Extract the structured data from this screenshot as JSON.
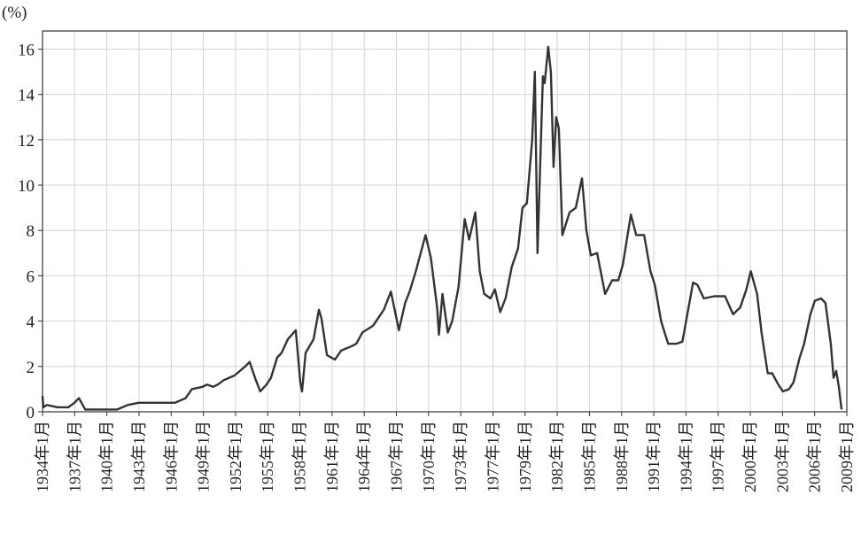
{
  "chart_data": {
    "type": "line",
    "unit_label": "(%)",
    "ylim": [
      0,
      16.8
    ],
    "yticks": [
      0,
      2,
      4,
      6,
      8,
      10,
      12,
      14,
      16
    ],
    "x_range": [
      "1934-01",
      "2009-06"
    ],
    "xticks": [
      "1934年1月",
      "1937年1月",
      "1940年1月",
      "1943年1月",
      "1946年1月",
      "1949年1月",
      "1952年1月",
      "1955年1月",
      "1958年1月",
      "1961年1月",
      "1964年1月",
      "1967年1月",
      "1970年1月",
      "1973年1月",
      "1977年1月",
      "1979年1月",
      "1982年1月",
      "1985年1月",
      "1988年1月",
      "1991年1月",
      "1994年1月",
      "1997年1月",
      "2000年1月",
      "2003年1月",
      "2006年1月",
      "2009年1月"
    ],
    "grid": true,
    "line_color": "#333333",
    "series": [
      {
        "points": [
          [
            "1934-01",
            0.7
          ],
          [
            "1934-02",
            0.2
          ],
          [
            "1934-06",
            0.3
          ],
          [
            "1935-06",
            0.2
          ],
          [
            "1936-06",
            0.2
          ],
          [
            "1937-01",
            0.4
          ],
          [
            "1937-06",
            0.6
          ],
          [
            "1938-01",
            0.1
          ],
          [
            "1939-01",
            0.1
          ],
          [
            "1940-01",
            0.1
          ],
          [
            "1941-01",
            0.1
          ],
          [
            "1942-01",
            0.3
          ],
          [
            "1943-01",
            0.4
          ],
          [
            "1944-01",
            0.4
          ],
          [
            "1946-06",
            0.4
          ],
          [
            "1947-06",
            0.6
          ],
          [
            "1948-01",
            1.0
          ],
          [
            "1949-01",
            1.1
          ],
          [
            "1949-06",
            1.2
          ],
          [
            "1950-01",
            1.1
          ],
          [
            "1950-06",
            1.2
          ],
          [
            "1951-01",
            1.4
          ],
          [
            "1952-01",
            1.6
          ],
          [
            "1953-01",
            2.0
          ],
          [
            "1953-06",
            2.2
          ],
          [
            "1954-01",
            1.4
          ],
          [
            "1954-06",
            0.9
          ],
          [
            "1955-01",
            1.2
          ],
          [
            "1955-06",
            1.5
          ],
          [
            "1956-01",
            2.4
          ],
          [
            "1956-06",
            2.6
          ],
          [
            "1957-01",
            3.2
          ],
          [
            "1957-10",
            3.6
          ],
          [
            "1958-03",
            1.3
          ],
          [
            "1958-05",
            0.9
          ],
          [
            "1958-09",
            2.6
          ],
          [
            "1959-06",
            3.2
          ],
          [
            "1959-12",
            4.5
          ],
          [
            "1960-03",
            4.1
          ],
          [
            "1960-09",
            2.5
          ],
          [
            "1961-06",
            2.3
          ],
          [
            "1962-01",
            2.7
          ],
          [
            "1963-01",
            2.9
          ],
          [
            "1963-06",
            3.0
          ],
          [
            "1964-01",
            3.5
          ],
          [
            "1965-01",
            3.8
          ],
          [
            "1966-01",
            4.5
          ],
          [
            "1966-09",
            5.3
          ],
          [
            "1967-06",
            3.6
          ],
          [
            "1968-01",
            4.8
          ],
          [
            "1968-06",
            5.3
          ],
          [
            "1969-01",
            6.2
          ],
          [
            "1969-12",
            7.8
          ],
          [
            "1970-06",
            6.8
          ],
          [
            "1971-01",
            4.6
          ],
          [
            "1971-03",
            3.4
          ],
          [
            "1971-07",
            5.2
          ],
          [
            "1972-01",
            3.5
          ],
          [
            "1972-06",
            4.0
          ],
          [
            "1973-01",
            5.5
          ],
          [
            "1973-08",
            8.5
          ],
          [
            "1974-01",
            7.6
          ],
          [
            "1974-08",
            8.8
          ],
          [
            "1975-01",
            6.2
          ],
          [
            "1975-06",
            5.2
          ],
          [
            "1976-01",
            5.0
          ],
          [
            "1976-06",
            5.4
          ],
          [
            "1976-12",
            4.4
          ],
          [
            "1977-06",
            5.0
          ],
          [
            "1978-01",
            6.4
          ],
          [
            "1978-08",
            7.2
          ],
          [
            "1979-01",
            9.0
          ],
          [
            "1979-06",
            9.2
          ],
          [
            "1979-12",
            12.0
          ],
          [
            "1980-03",
            15.0
          ],
          [
            "1980-06",
            7.0
          ],
          [
            "1980-12",
            14.8
          ],
          [
            "1981-02",
            14.5
          ],
          [
            "1981-06",
            16.1
          ],
          [
            "1981-09",
            15.0
          ],
          [
            "1981-12",
            10.8
          ],
          [
            "1982-03",
            13.0
          ],
          [
            "1982-06",
            12.5
          ],
          [
            "1982-10",
            7.8
          ],
          [
            "1983-06",
            8.8
          ],
          [
            "1984-01",
            9.0
          ],
          [
            "1984-08",
            10.3
          ],
          [
            "1985-01",
            8.0
          ],
          [
            "1985-06",
            6.9
          ],
          [
            "1986-01",
            7.0
          ],
          [
            "1986-06",
            6.0
          ],
          [
            "1986-10",
            5.2
          ],
          [
            "1987-06",
            5.8
          ],
          [
            "1988-01",
            5.8
          ],
          [
            "1988-06",
            6.5
          ],
          [
            "1989-03",
            8.7
          ],
          [
            "1989-09",
            7.8
          ],
          [
            "1990-06",
            7.8
          ],
          [
            "1991-01",
            6.2
          ],
          [
            "1991-06",
            5.6
          ],
          [
            "1992-01",
            4.0
          ],
          [
            "1992-09",
            3.0
          ],
          [
            "1993-06",
            3.0
          ],
          [
            "1994-01",
            3.1
          ],
          [
            "1995-01",
            5.7
          ],
          [
            "1995-06",
            5.6
          ],
          [
            "1996-01",
            5.0
          ],
          [
            "1997-01",
            5.1
          ],
          [
            "1998-01",
            5.1
          ],
          [
            "1998-10",
            4.3
          ],
          [
            "1999-06",
            4.6
          ],
          [
            "2000-01",
            5.4
          ],
          [
            "2000-06",
            6.2
          ],
          [
            "2001-01",
            5.2
          ],
          [
            "2001-06",
            3.5
          ],
          [
            "2002-01",
            1.7
          ],
          [
            "2002-06",
            1.7
          ],
          [
            "2003-01",
            1.2
          ],
          [
            "2003-06",
            0.9
          ],
          [
            "2004-01",
            1.0
          ],
          [
            "2004-06",
            1.3
          ],
          [
            "2005-01",
            2.4
          ],
          [
            "2005-06",
            3.0
          ],
          [
            "2006-01",
            4.3
          ],
          [
            "2006-06",
            4.9
          ],
          [
            "2007-01",
            5.0
          ],
          [
            "2007-06",
            4.8
          ],
          [
            "2007-12",
            3.0
          ],
          [
            "2008-03",
            1.5
          ],
          [
            "2008-06",
            1.8
          ],
          [
            "2008-09",
            1.1
          ],
          [
            "2008-12",
            0.1
          ]
        ]
      }
    ]
  }
}
